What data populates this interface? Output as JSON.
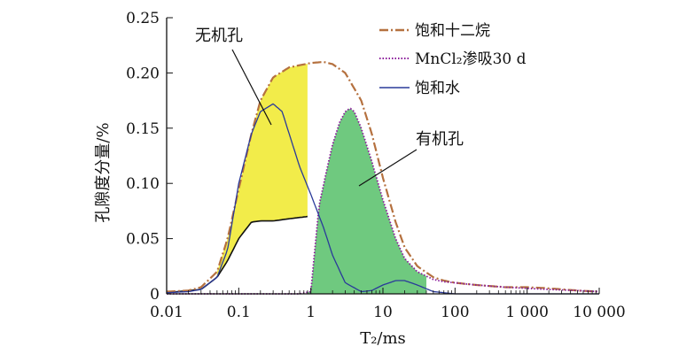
{
  "chart_data": {
    "type": "line",
    "xlabel": "T₂/ms",
    "ylabel": "孔隙度分量/%",
    "x_scale": "log",
    "xlim": [
      0.01,
      10000
    ],
    "ylim": [
      0,
      0.25
    ],
    "x_ticks": [
      "0.01",
      "0.1",
      "1",
      "10",
      "100",
      "1 000",
      "10 000"
    ],
    "y_ticks": [
      "0",
      "0.05",
      "0.10",
      "0.15",
      "0.20",
      "0.25"
    ],
    "grid": false,
    "legend_position": "top-right",
    "annotations": [
      "无机孔",
      "有机孔"
    ],
    "series": [
      {
        "name": "饱和十二烷",
        "color": "#b5713f",
        "style": "dash-dot",
        "x": [
          0.01,
          0.02,
          0.03,
          0.05,
          0.07,
          0.1,
          0.15,
          0.2,
          0.3,
          0.5,
          0.7,
          1,
          1.5,
          2,
          3,
          5,
          7,
          10,
          15,
          20,
          30,
          50,
          70,
          100,
          200,
          500,
          1000,
          2000,
          5000,
          10000
        ],
        "values": [
          0.002,
          0.003,
          0.006,
          0.02,
          0.05,
          0.095,
          0.145,
          0.175,
          0.196,
          0.205,
          0.207,
          0.209,
          0.21,
          0.208,
          0.2,
          0.175,
          0.145,
          0.105,
          0.065,
          0.042,
          0.025,
          0.015,
          0.012,
          0.01,
          0.008,
          0.006,
          0.006,
          0.005,
          0.003,
          0.002
        ]
      },
      {
        "name": "MnCl₂渗吸30 d",
        "color": "#8a1a9a",
        "style": "dotted",
        "x": [
          0.01,
          0.03,
          0.1,
          0.3,
          0.7,
          1,
          1.3,
          1.7,
          2,
          2.5,
          3,
          3.5,
          4,
          5,
          7,
          10,
          15,
          20,
          30,
          50,
          70,
          100,
          200,
          500,
          1000,
          2000,
          5000,
          10000
        ],
        "values": [
          0,
          0,
          0,
          0,
          0,
          0.002,
          0.08,
          0.115,
          0.135,
          0.155,
          0.165,
          0.168,
          0.165,
          0.15,
          0.12,
          0.085,
          0.05,
          0.032,
          0.02,
          0.013,
          0.011,
          0.01,
          0.008,
          0.006,
          0.005,
          0.004,
          0.003,
          0.002
        ]
      },
      {
        "name": "饱和水",
        "color": "#2a3a9a",
        "style": "solid",
        "x": [
          0.01,
          0.02,
          0.03,
          0.05,
          0.07,
          0.1,
          0.15,
          0.2,
          0.3,
          0.4,
          0.5,
          0.7,
          1,
          1.5,
          2,
          3,
          5,
          7,
          10,
          15,
          20,
          30,
          50,
          100,
          1000,
          10000
        ],
        "values": [
          0.001,
          0.002,
          0.004,
          0.015,
          0.04,
          0.1,
          0.145,
          0.165,
          0.172,
          0.165,
          0.145,
          0.115,
          0.09,
          0.06,
          0.035,
          0.01,
          0.002,
          0.003,
          0.008,
          0.012,
          0.012,
          0.008,
          0.002,
          0,
          0,
          0
        ]
      }
    ],
    "filled_regions": [
      {
        "name": "无机孔",
        "color": "#f2ec4a",
        "between": [
          "饱和十二烷",
          "baseline"
        ],
        "x_range": [
          0.05,
          0.9
        ]
      },
      {
        "name": "有机孔",
        "color": "#6fc97f",
        "between": [
          "MnCl₂渗吸30 d",
          "zero"
        ],
        "x_range": [
          0.9,
          40
        ]
      }
    ],
    "baseline_curve": {
      "x": [
        0.01,
        0.03,
        0.05,
        0.07,
        0.1,
        0.15,
        0.2,
        0.3,
        0.5,
        0.9
      ],
      "values": [
        0.001,
        0.004,
        0.015,
        0.03,
        0.05,
        0.065,
        0.066,
        0.066,
        0.068,
        0.07
      ]
    }
  }
}
